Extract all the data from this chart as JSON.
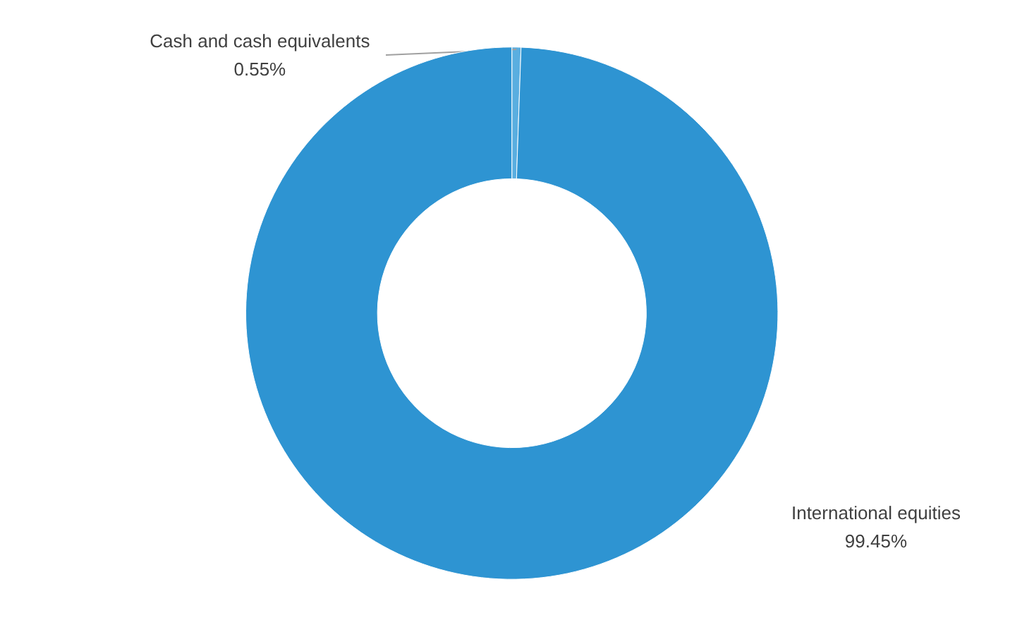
{
  "chart_data": {
    "type": "donut",
    "categories": [
      "Cash and cash equivalents",
      "International equities"
    ],
    "values": [
      0.55,
      99.45
    ],
    "colors": [
      "#5aaee0",
      "#2e94d2"
    ],
    "value_labels": [
      "0.55%",
      "99.45%"
    ]
  }
}
